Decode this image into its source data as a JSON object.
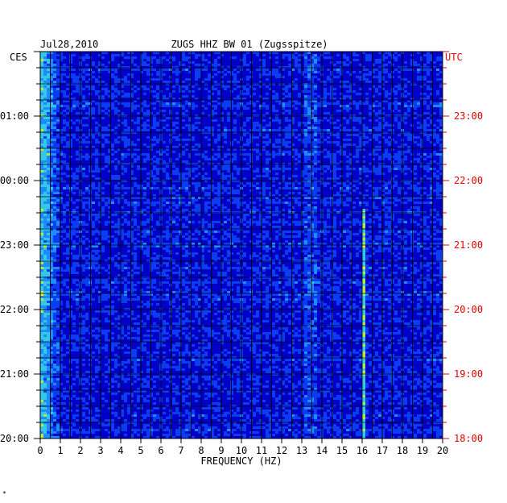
{
  "chart_data": {
    "type": "heatmap",
    "title": "ZUGS HHZ BW 01 (Zugsspitze)",
    "date": "Jul28,2010",
    "left_zone_label": "CES",
    "right_zone_label": "UTC",
    "xlabel": "FREQUENCY (HZ)",
    "xlim": [
      0,
      20
    ],
    "x_ticks": [
      "0",
      "1",
      "2",
      "3",
      "4",
      "5",
      "6",
      "7",
      "8",
      "9",
      "10",
      "11",
      "12",
      "13",
      "14",
      "15",
      "16",
      "17",
      "18",
      "19",
      "20"
    ],
    "left_time_range_hours": [
      20,
      26
    ],
    "left_ticks": [
      {
        "hour": 20,
        "label": "20:00"
      },
      {
        "hour": 21,
        "label": "21:00"
      },
      {
        "hour": 22,
        "label": "22:00"
      },
      {
        "hour": 23,
        "label": "23:00"
      },
      {
        "hour": 24,
        "label": "00:00"
      },
      {
        "hour": 25,
        "label": "01:00"
      }
    ],
    "right_ticks": [
      {
        "hour": 20,
        "label": "18:00"
      },
      {
        "hour": 21,
        "label": "19:00"
      },
      {
        "hour": 22,
        "label": "20:00"
      },
      {
        "hour": 23,
        "label": "21:00"
      },
      {
        "hour": 24,
        "label": "22:00"
      },
      {
        "hour": 25,
        "label": "23:00"
      }
    ],
    "color_scale": [
      "#0000c8",
      "#0a3cf0",
      "#1e8cff",
      "#32c8e6",
      "#b4e650",
      "#ffe600",
      "#ff9600",
      "#e61e00"
    ],
    "grid": true,
    "persistent_features_hz": [
      0.3,
      13.4,
      16.1
    ],
    "footer_mark": "*"
  },
  "colors": {
    "axis_text": "#000000",
    "utc_text": "#e60000",
    "background_field": "#0000c8",
    "grid": "#000000"
  }
}
